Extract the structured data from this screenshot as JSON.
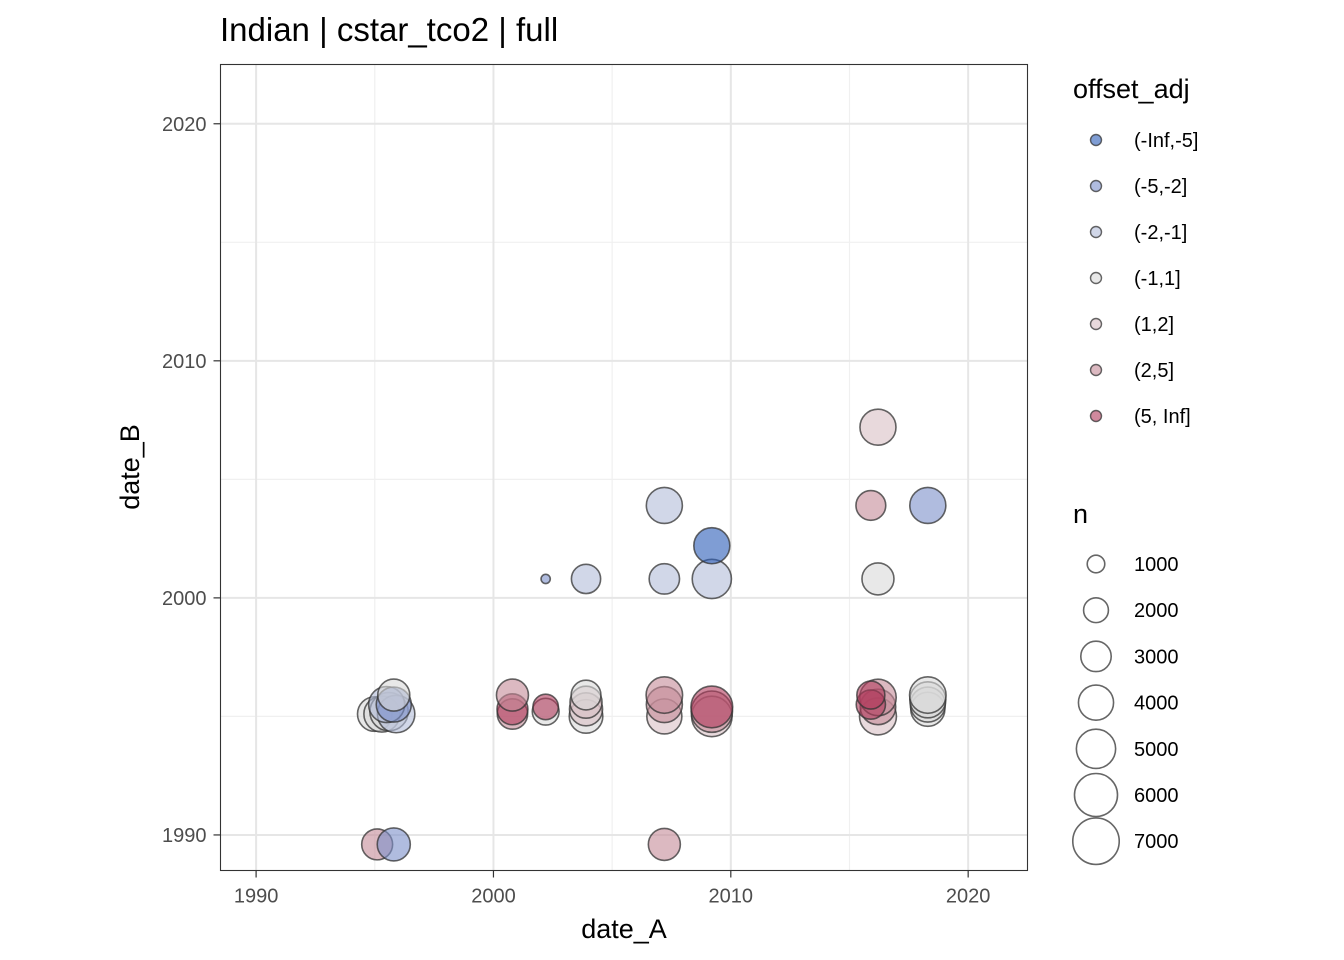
{
  "chart_data": {
    "type": "scatter",
    "title": "Indian | cstar_tco2 | full",
    "xlabel": "date_A",
    "ylabel": "date_B",
    "xlim": [
      1988.5,
      2022.5
    ],
    "ylim": [
      1988.5,
      2022.5
    ],
    "x_ticks": [
      1990,
      2000,
      2010,
      2020
    ],
    "y_ticks": [
      1990,
      2000,
      2010,
      2020
    ],
    "x_tick_labels": [
      "1990",
      "2000",
      "2010",
      "2020"
    ],
    "y_tick_labels": [
      "1990",
      "2000",
      "2010",
      "2020"
    ],
    "grid": true,
    "legend_position": "right",
    "color_legend": {
      "title": "offset_adj",
      "entries": [
        {
          "label": "(-Inf,-5]",
          "color": "#2a5bb8"
        },
        {
          "label": "(-5,-2]",
          "color": "#7b8fc9"
        },
        {
          "label": "(-2,-1]",
          "color": "#b2bcd9"
        },
        {
          "label": "(-1,1]",
          "color": "#d9d9d9"
        },
        {
          "label": "(1,2]",
          "color": "#d8bfc4"
        },
        {
          "label": "(2,5]",
          "color": "#c48b98"
        },
        {
          "label": "(5, Inf]",
          "color": "#b03a5c"
        }
      ]
    },
    "size_legend": {
      "title": "n",
      "entries": [
        {
          "label": "1000",
          "value": 1000
        },
        {
          "label": "2000",
          "value": 2000
        },
        {
          "label": "3000",
          "value": 3000
        },
        {
          "label": "4000",
          "value": 4000
        },
        {
          "label": "5000",
          "value": 5000
        },
        {
          "label": "6000",
          "value": 6000
        },
        {
          "label": "7000",
          "value": 7000
        }
      ]
    },
    "points": [
      {
        "x": 1995.1,
        "y": 1989.6,
        "n": 2800,
        "offset_adj": "(2,5]"
      },
      {
        "x": 1995.8,
        "y": 1989.6,
        "n": 3200,
        "offset_adj": "(-5,-2]"
      },
      {
        "x": 2007.2,
        "y": 1989.6,
        "n": 3000,
        "offset_adj": "(2,5]"
      },
      {
        "x": 1995.0,
        "y": 1995.1,
        "n": 3500,
        "offset_adj": "(-1,1]"
      },
      {
        "x": 1995.3,
        "y": 1995.1,
        "n": 3800,
        "offset_adj": "(-1,1]"
      },
      {
        "x": 1995.6,
        "y": 1995.2,
        "n": 4300,
        "offset_adj": "(-1,1]"
      },
      {
        "x": 1995.9,
        "y": 1995.1,
        "n": 4100,
        "offset_adj": "(-2,-1]"
      },
      {
        "x": 1995.5,
        "y": 1995.5,
        "n": 3800,
        "offset_adj": "(-2,-1]"
      },
      {
        "x": 1995.8,
        "y": 1995.5,
        "n": 3600,
        "offset_adj": "(-5,-2]"
      },
      {
        "x": 1995.8,
        "y": 1995.9,
        "n": 3000,
        "offset_adj": "(-1,1]"
      },
      {
        "x": 2000.8,
        "y": 1995.1,
        "n": 2700,
        "offset_adj": "(2,5]"
      },
      {
        "x": 2000.8,
        "y": 1995.3,
        "n": 2800,
        "offset_adj": "(5, Inf]"
      },
      {
        "x": 2000.8,
        "y": 1995.9,
        "n": 3000,
        "offset_adj": "(2,5]"
      },
      {
        "x": 2002.2,
        "y": 1995.2,
        "n": 2100,
        "offset_adj": "(-1,1]"
      },
      {
        "x": 2002.2,
        "y": 1995.4,
        "n": 1900,
        "offset_adj": "(5, Inf]"
      },
      {
        "x": 2002.2,
        "y": 2000.8,
        "n": 250,
        "offset_adj": "(-5,-2]"
      },
      {
        "x": 2003.9,
        "y": 1995.0,
        "n": 3300,
        "offset_adj": "(-1,1]"
      },
      {
        "x": 2003.9,
        "y": 1995.3,
        "n": 3200,
        "offset_adj": "(1,2]"
      },
      {
        "x": 2003.9,
        "y": 1995.6,
        "n": 3000,
        "offset_adj": "(1,2]"
      },
      {
        "x": 2003.9,
        "y": 1995.9,
        "n": 2600,
        "offset_adj": "(-1,1]"
      },
      {
        "x": 2003.9,
        "y": 2000.8,
        "n": 2500,
        "offset_adj": "(-2,-1]"
      },
      {
        "x": 2007.2,
        "y": 1995.0,
        "n": 3600,
        "offset_adj": "(1,2]"
      },
      {
        "x": 2007.2,
        "y": 1995.5,
        "n": 3800,
        "offset_adj": "(2,5]"
      },
      {
        "x": 2007.2,
        "y": 1995.9,
        "n": 3900,
        "offset_adj": "(2,5]"
      },
      {
        "x": 2007.2,
        "y": 2000.8,
        "n": 2700,
        "offset_adj": "(-2,-1]"
      },
      {
        "x": 2007.2,
        "y": 2003.9,
        "n": 3800,
        "offset_adj": "(-2,-1]"
      },
      {
        "x": 2009.2,
        "y": 1995.0,
        "n": 4800,
        "offset_adj": "(1,2]"
      },
      {
        "x": 2009.2,
        "y": 1995.2,
        "n": 5000,
        "offset_adj": "(2,5]"
      },
      {
        "x": 2009.2,
        "y": 1995.4,
        "n": 5100,
        "offset_adj": "(5, Inf]"
      },
      {
        "x": 2009.2,
        "y": 2000.8,
        "n": 4500,
        "offset_adj": "(-2,-1]"
      },
      {
        "x": 2009.2,
        "y": 2002.2,
        "n": 3800,
        "offset_adj": "(-Inf,-5]"
      },
      {
        "x": 2016.2,
        "y": 1995.0,
        "n": 4000,
        "offset_adj": "(1,2]"
      },
      {
        "x": 2016.2,
        "y": 1995.4,
        "n": 3700,
        "offset_adj": "(2,5]"
      },
      {
        "x": 2016.2,
        "y": 1995.8,
        "n": 3900,
        "offset_adj": "(2,5]"
      },
      {
        "x": 2015.9,
        "y": 1995.5,
        "n": 2500,
        "offset_adj": "(5, Inf]"
      },
      {
        "x": 2015.9,
        "y": 1995.9,
        "n": 2300,
        "offset_adj": "(5, Inf]"
      },
      {
        "x": 2016.2,
        "y": 2000.8,
        "n": 3000,
        "offset_adj": "(-1,1]"
      },
      {
        "x": 2015.9,
        "y": 2003.9,
        "n": 2600,
        "offset_adj": "(2,5]"
      },
      {
        "x": 2016.2,
        "y": 2007.2,
        "n": 3800,
        "offset_adj": "(1,2]"
      },
      {
        "x": 2018.3,
        "y": 1995.3,
        "n": 3400,
        "offset_adj": "(-1,1]"
      },
      {
        "x": 2018.3,
        "y": 1995.5,
        "n": 3600,
        "offset_adj": "(-1,1]"
      },
      {
        "x": 2018.3,
        "y": 1995.7,
        "n": 3800,
        "offset_adj": "(-1,1]"
      },
      {
        "x": 2018.3,
        "y": 1995.9,
        "n": 3900,
        "offset_adj": "(-1,1]"
      },
      {
        "x": 2018.3,
        "y": 2003.9,
        "n": 3800,
        "offset_adj": "(-5,-2]"
      }
    ]
  }
}
